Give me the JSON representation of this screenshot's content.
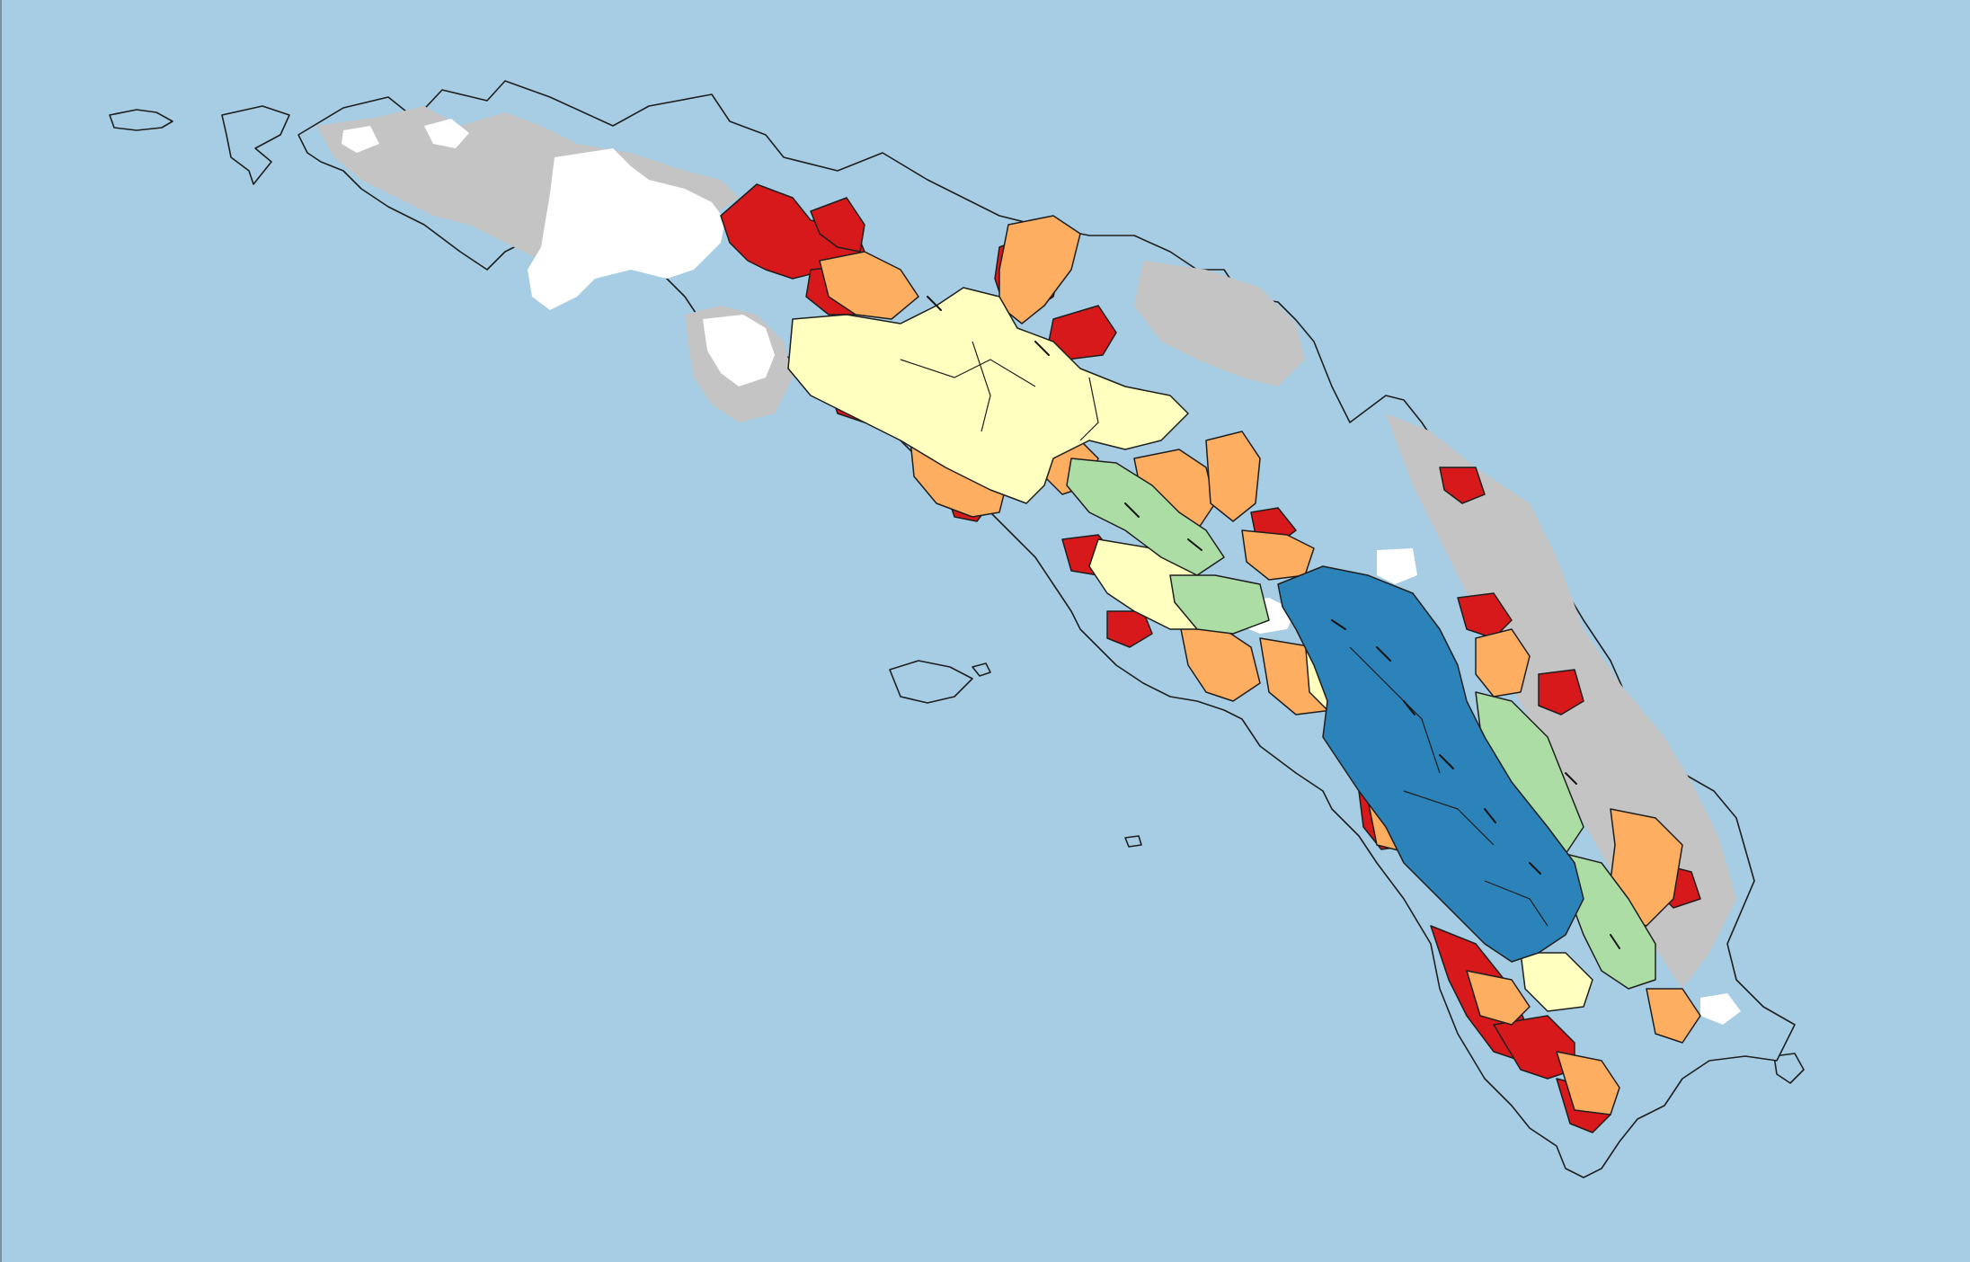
{
  "map": {
    "colors": {
      "ocean": "#a6cde3",
      "snow": "#ffffff",
      "grey_ice": "#c4c4c4",
      "class_red": "#d7191c",
      "class_orange": "#fdae61",
      "class_yellow": "#ffffbf",
      "class_green": "#abdda4",
      "class_blue": "#2b83ba",
      "outline": "#1e1e1e"
    },
    "legend_visible": false,
    "text_labels": []
  }
}
